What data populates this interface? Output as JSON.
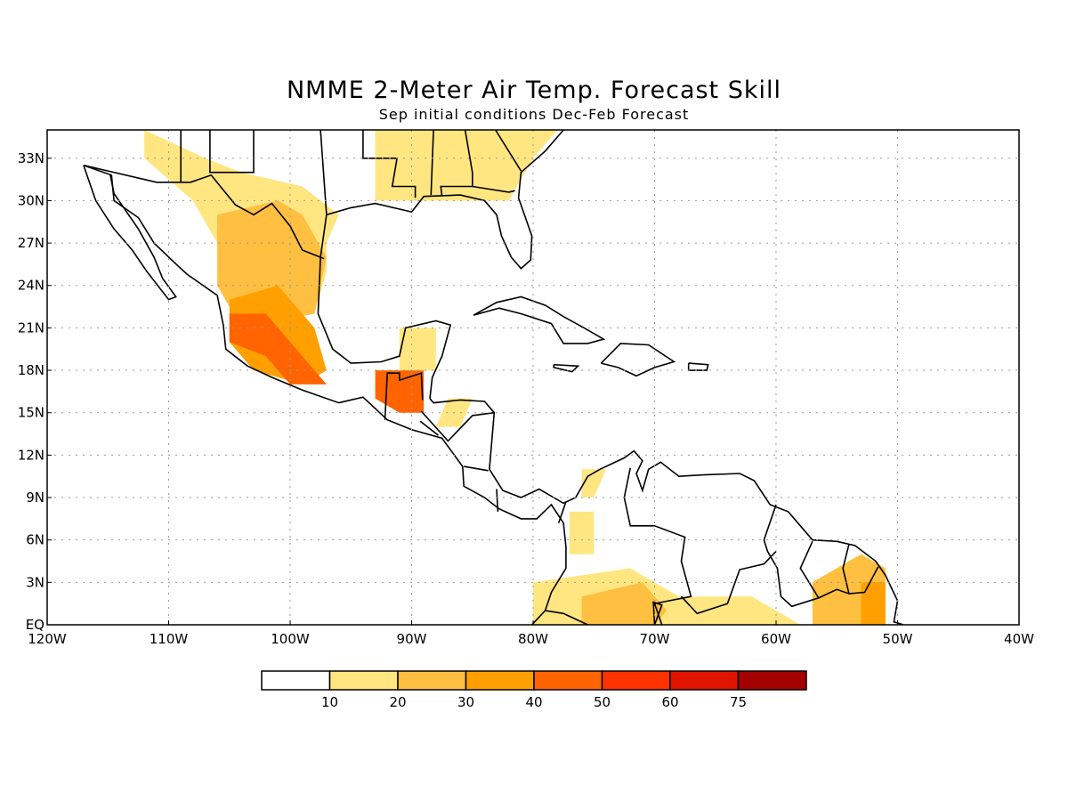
{
  "title": "NMME 2-Meter Air Temp. Forecast Skill",
  "subtitle": "Sep initial conditions  Dec-Feb Forecast",
  "map": {
    "lon_range": [
      -120,
      -40
    ],
    "lat_range": [
      0,
      35
    ],
    "lat_ticks": [
      {
        "value": 33,
        "label": "33N"
      },
      {
        "value": 30,
        "label": "30N"
      },
      {
        "value": 27,
        "label": "27N"
      },
      {
        "value": 24,
        "label": "24N"
      },
      {
        "value": 21,
        "label": "21N"
      },
      {
        "value": 18,
        "label": "18N"
      },
      {
        "value": 15,
        "label": "15N"
      },
      {
        "value": 12,
        "label": "12N"
      },
      {
        "value": 9,
        "label": "9N"
      },
      {
        "value": 6,
        "label": "6N"
      },
      {
        "value": 3,
        "label": "3N"
      },
      {
        "value": 0,
        "label": "EQ"
      }
    ],
    "lon_ticks": [
      {
        "value": -120,
        "label": "120W"
      },
      {
        "value": -110,
        "label": "110W"
      },
      {
        "value": -100,
        "label": "100W"
      },
      {
        "value": -90,
        "label": "90W"
      },
      {
        "value": -80,
        "label": "80W"
      },
      {
        "value": -70,
        "label": "70W"
      },
      {
        "value": -60,
        "label": "60W"
      },
      {
        "value": -50,
        "label": "50W"
      },
      {
        "value": -40,
        "label": "40W"
      }
    ],
    "gridlines": "dotted",
    "skill_regions": [
      {
        "name": "northern-mexico-texas",
        "level": 1,
        "polygon": [
          [
            -112,
            35
          ],
          [
            -107,
            33
          ],
          [
            -104,
            32
          ],
          [
            -99,
            31
          ],
          [
            -96,
            29
          ],
          [
            -97,
            27
          ],
          [
            -97,
            25
          ],
          [
            -98,
            22
          ],
          [
            -104,
            24
          ],
          [
            -106,
            27
          ],
          [
            -108,
            30
          ],
          [
            -112,
            33
          ]
        ]
      },
      {
        "name": "southeast-us",
        "level": 1,
        "polygon": [
          [
            -93,
            35
          ],
          [
            -78,
            35
          ],
          [
            -80,
            33
          ],
          [
            -82,
            30
          ],
          [
            -85,
            30
          ],
          [
            -89,
            30
          ],
          [
            -93,
            30
          ]
        ]
      },
      {
        "name": "mexico-plateau",
        "level": 2,
        "polygon": [
          [
            -106,
            29
          ],
          [
            -101,
            30
          ],
          [
            -99,
            29
          ],
          [
            -97,
            26
          ],
          [
            -98,
            22
          ],
          [
            -104,
            21
          ],
          [
            -106,
            24
          ]
        ]
      },
      {
        "name": "central-mexico",
        "level": 3,
        "polygon": [
          [
            -105,
            23
          ],
          [
            -101,
            24
          ],
          [
            -98,
            21
          ],
          [
            -97,
            18
          ],
          [
            -99,
            17
          ],
          [
            -103,
            18
          ],
          [
            -105,
            20
          ]
        ]
      },
      {
        "name": "southern-mexico",
        "level": 4,
        "polygon": [
          [
            -105,
            22
          ],
          [
            -102,
            22
          ],
          [
            -99,
            19
          ],
          [
            -97,
            17
          ],
          [
            -100,
            17
          ],
          [
            -102,
            19
          ],
          [
            -105,
            20
          ]
        ]
      },
      {
        "name": "guatemala",
        "level": 4,
        "polygon": [
          [
            -93,
            18
          ],
          [
            -89,
            18
          ],
          [
            -89,
            15
          ],
          [
            -91,
            15
          ],
          [
            -93,
            16
          ]
        ]
      },
      {
        "name": "yucatan",
        "level": 1,
        "polygon": [
          [
            -91,
            21
          ],
          [
            -88,
            21
          ],
          [
            -88,
            18
          ],
          [
            -91,
            18
          ]
        ]
      },
      {
        "name": "honduras",
        "level": 1,
        "polygon": [
          [
            -87,
            16
          ],
          [
            -85,
            16
          ],
          [
            -86,
            14
          ],
          [
            -88,
            14
          ]
        ]
      },
      {
        "name": "colombia-coast",
        "level": 1,
        "polygon": [
          [
            -76,
            11
          ],
          [
            -74,
            11
          ],
          [
            -75,
            9
          ],
          [
            -76,
            9
          ]
        ]
      },
      {
        "name": "colombia-west",
        "level": 1,
        "polygon": [
          [
            -77,
            8
          ],
          [
            -75,
            8
          ],
          [
            -75,
            5
          ],
          [
            -77,
            5
          ]
        ]
      },
      {
        "name": "amazon-west",
        "level": 1,
        "polygon": [
          [
            -80,
            3
          ],
          [
            -72,
            4
          ],
          [
            -68,
            2
          ],
          [
            -62,
            2
          ],
          [
            -58,
            0
          ],
          [
            -80,
            0
          ]
        ]
      },
      {
        "name": "amazon-central",
        "level": 2,
        "polygon": [
          [
            -76,
            2
          ],
          [
            -71,
            3
          ],
          [
            -69,
            1
          ],
          [
            -70,
            0
          ],
          [
            -76,
            0
          ]
        ]
      },
      {
        "name": "french-guiana-brazil",
        "level": 2,
        "polygon": [
          [
            -57,
            3
          ],
          [
            -53,
            5
          ],
          [
            -51,
            4
          ],
          [
            -51,
            0
          ],
          [
            -57,
            0
          ]
        ]
      },
      {
        "name": "amapa",
        "level": 3,
        "polygon": [
          [
            -53,
            3
          ],
          [
            -51,
            3
          ],
          [
            -51,
            0
          ],
          [
            -53,
            0
          ]
        ]
      }
    ]
  },
  "colorbar": {
    "colors": [
      "#ffffff",
      "#ffe680",
      "#ffbf40",
      "#ffa000",
      "#ff6400",
      "#ff3200",
      "#e11400",
      "#a50000"
    ],
    "labels": [
      "10",
      "20",
      "30",
      "40",
      "50",
      "60",
      "75"
    ]
  }
}
